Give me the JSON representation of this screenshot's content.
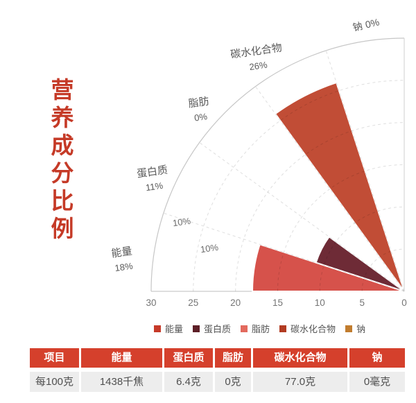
{
  "title": {
    "text": "营养成分比例"
  },
  "colors": {
    "title": "#c53a27",
    "axis_text": "#757575",
    "label_text": "#595959",
    "grid_line": "#cccccc",
    "table_header_bg": "#d5402c",
    "table_header_text": "#ffffff",
    "table_row_bg": "#ededed",
    "table_row_text": "#4f4f4f"
  },
  "chart_data": {
    "type": "rose",
    "title": "营养成分比例",
    "angle_start_deg": 0,
    "angle_end_deg": 90,
    "sector_span_deg": 18,
    "categories": [
      "能量",
      "蛋白质",
      "脂肪",
      "碳水化合物",
      "钠"
    ],
    "series": [
      {
        "slug": "energy",
        "name": "能量",
        "value": 18,
        "pct_label": "18%",
        "wedge_color": "#d6524b",
        "legend_color": "#c63a29"
      },
      {
        "slug": "protein",
        "name": "蛋白质",
        "value": 11,
        "pct_label": "11%",
        "wedge_color": "#6e2b36",
        "legend_color": "#5d1f27"
      },
      {
        "slug": "fat",
        "name": "脂肪",
        "value": 0,
        "pct_label": "0%",
        "wedge_color": "#e36a5e",
        "legend_color": "#e36a5e"
      },
      {
        "slug": "carbohydrate",
        "name": "碳水化合物",
        "value": 26,
        "pct_label": "26%",
        "wedge_color": "#c14d36",
        "legend_color": "#b23b22"
      },
      {
        "slug": "sodium",
        "name": "钠",
        "value": 0,
        "pct_label": "0%",
        "wedge_color": "#c17c2e",
        "legend_color": "#c17c2e"
      }
    ],
    "radius_axis": {
      "max": 30,
      "tick_interval": 5,
      "ticks": [
        "30",
        "25",
        "20",
        "15",
        "10",
        "5",
        "0"
      ]
    },
    "grid": {
      "style": "dashed",
      "arcs_every": 5,
      "radial_lines_deg": [
        18,
        36,
        54,
        72
      ]
    },
    "grid_labels": [
      "10%",
      "10%"
    ],
    "legend_position": "bottom"
  },
  "table": {
    "headers": [
      "项目",
      "能量",
      "蛋白质",
      "脂肪",
      "碳水化合物",
      "钠"
    ],
    "row": [
      "每100克",
      "1438千焦",
      "6.4克",
      "0克",
      "77.0克",
      "0毫克"
    ]
  }
}
